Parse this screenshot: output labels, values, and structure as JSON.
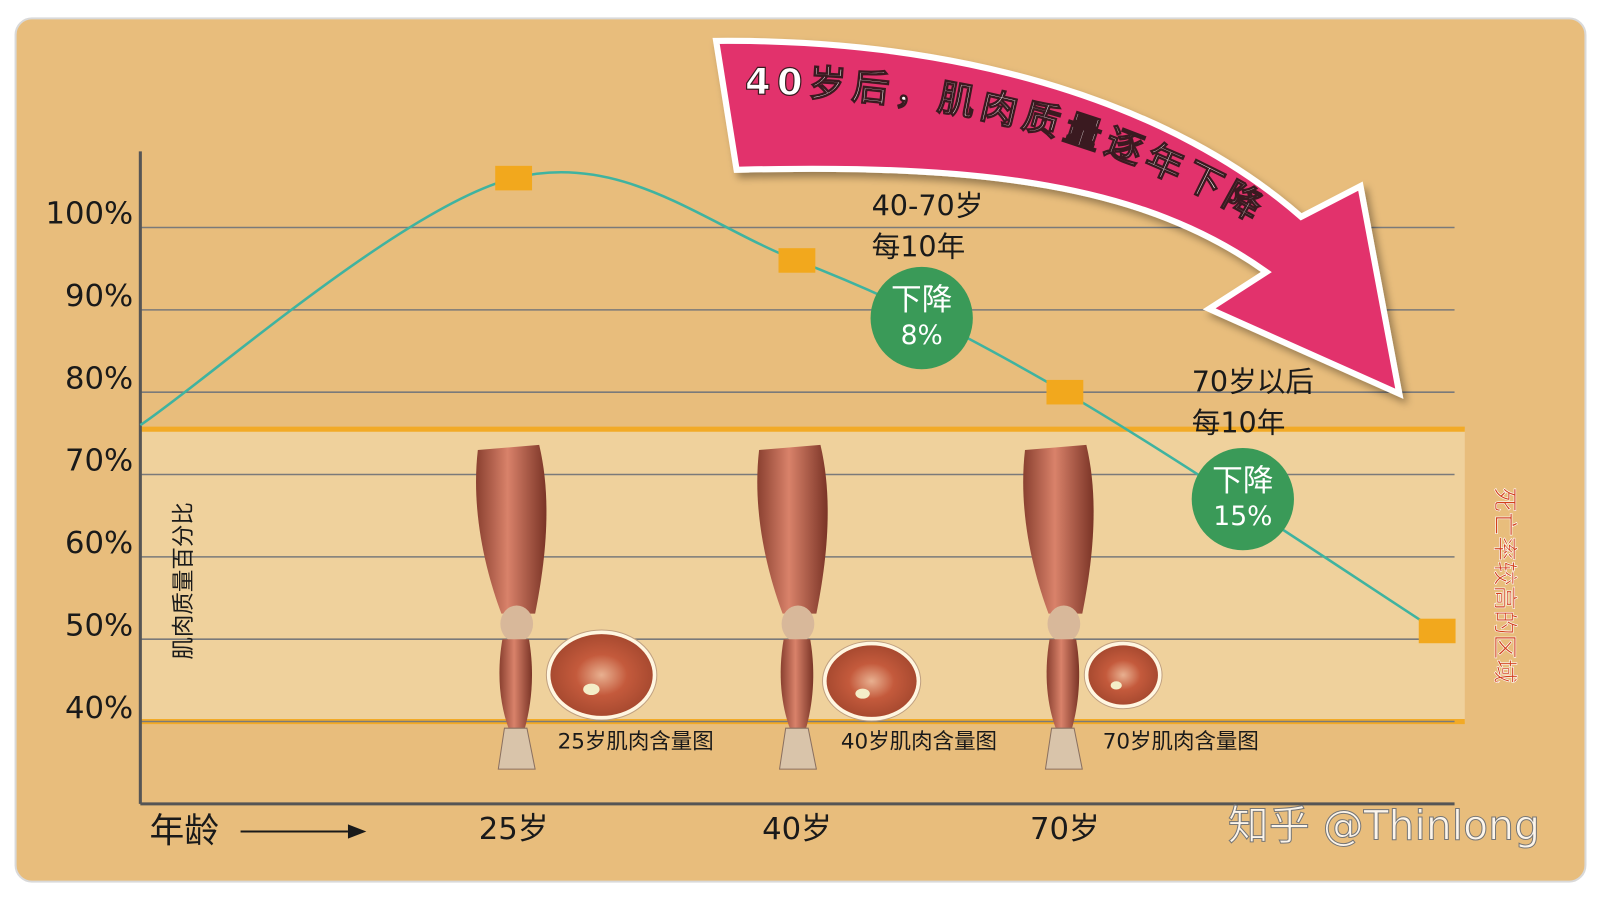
{
  "chart_data": {
    "type": "line",
    "title": "40岁后，肌肉质量逐年下降",
    "y_label": "肌肉质量百分比",
    "x_label": "年龄",
    "categories": [
      null,
      "25岁",
      "40岁",
      "70岁",
      null
    ],
    "series": [
      {
        "name": "肌肉质量百分比",
        "color": "#3fb3a0",
        "marker_color": "#f2a81d",
        "values": [
          76,
          106,
          96,
          80,
          51
        ]
      }
    ],
    "ylim": [
      30,
      109
    ],
    "yticks": [
      {
        "value": 40,
        "label": "40%"
      },
      {
        "value": 50,
        "label": "50%"
      },
      {
        "value": 60,
        "label": "60%"
      },
      {
        "value": 70,
        "label": "70%"
      },
      {
        "value": 80,
        "label": "80%"
      },
      {
        "value": 90,
        "label": "90%"
      },
      {
        "value": 100,
        "label": "100%"
      }
    ],
    "grid": true,
    "zone": {
      "label": "死亡率较高的区域",
      "range": [
        40,
        75.5
      ]
    },
    "annotations": [
      {
        "lines": [
          "40-70岁",
          "每10年"
        ],
        "badge": [
          "下降",
          "8%"
        ]
      },
      {
        "lines": [
          "70岁以后",
          "每10年"
        ],
        "badge": [
          "下降",
          "15%"
        ]
      }
    ],
    "images": [
      "25岁肌肉含量图",
      "40岁肌肉含量图",
      "70岁肌肉含量图"
    ],
    "watermark": "知乎 @Thinlong"
  }
}
